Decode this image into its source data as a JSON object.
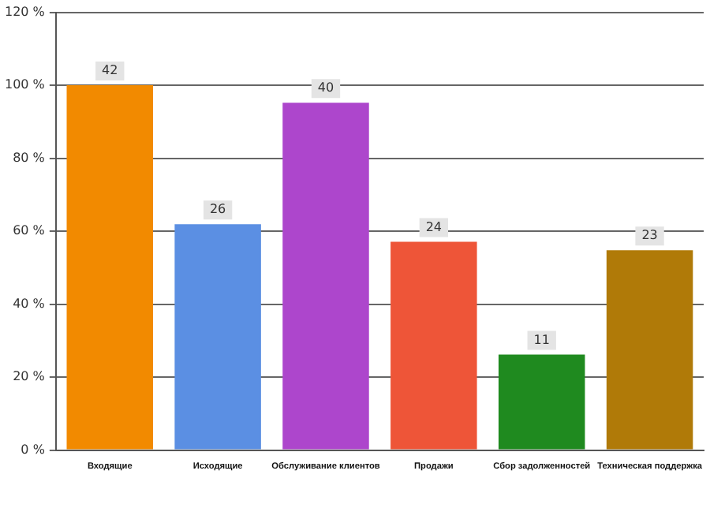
{
  "chart_data": {
    "type": "bar",
    "categories": [
      "Входящие",
      "Исходящие",
      "Обслуживание клиентов",
      "Продажи",
      "Сбор задолженностей",
      "Техническая поддержка"
    ],
    "values": [
      100,
      61.9,
      95.2,
      57.1,
      26.2,
      54.8
    ],
    "annotations": [
      {
        "text": "42",
        "x": "Входящие",
        "y": 100
      },
      {
        "text": "26",
        "x": "Исходящие",
        "y": 61.9
      },
      {
        "text": "40",
        "x": "Обслуживание клиентов",
        "y": 95.2
      },
      {
        "text": "24",
        "x": "Продажи",
        "y": 57.1
      },
      {
        "text": "11",
        "x": "Сбор задолженностей",
        "y": 26.2
      },
      {
        "text": "23",
        "x": "Техническая поддержка",
        "y": 54.8
      }
    ],
    "colors": [
      "#f28a00",
      "#5b8fe3",
      "#ad46cc",
      "#ee5538",
      "#1f8a1f",
      "#b07a08"
    ],
    "ylim": [
      0,
      120
    ],
    "yticks": [
      {
        "value": 0,
        "label": "0 %"
      },
      {
        "value": 20,
        "label": "20 %"
      },
      {
        "value": 40,
        "label": "40 %"
      },
      {
        "value": 60,
        "label": "60 %"
      },
      {
        "value": 80,
        "label": "80 %"
      },
      {
        "value": 100,
        "label": "100 %"
      },
      {
        "value": 120,
        "label": "120 %"
      }
    ],
    "grid": "y",
    "legend": false
  }
}
